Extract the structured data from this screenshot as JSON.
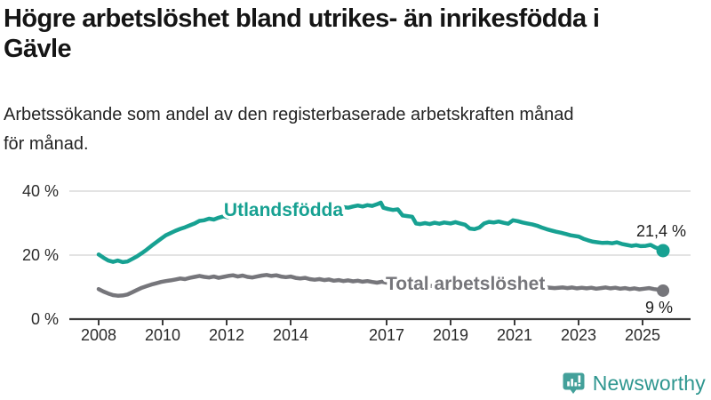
{
  "chart_data": {
    "type": "line",
    "title": "Högre arbetslöshet bland utrikes- än inrikesfödda i\nGävle",
    "subtitle": "Arbetssökande som andel av den registerbaserade arbetskraften månad\nför månad.",
    "unit": "%",
    "grid": "horizontal-only",
    "legend": "inline-series-labels",
    "x_axis": {
      "ticks": [
        {
          "label": "2008",
          "year": 2008
        },
        {
          "label": "2010",
          "year": 2010
        },
        {
          "label": "2012",
          "year": 2012
        },
        {
          "label": "2014",
          "year": 2014
        },
        {
          "label": "2017",
          "year": 2017
        },
        {
          "label": "2019",
          "year": 2019
        },
        {
          "label": "2021",
          "year": 2021
        },
        {
          "label": "2023",
          "year": 2023
        },
        {
          "label": "2025",
          "year": 2025
        }
      ],
      "range_years": [
        2008,
        2025.64
      ]
    },
    "y_axis": {
      "ticks": [
        {
          "label": "0 %",
          "value": 0
        },
        {
          "label": "20 %",
          "value": 20
        },
        {
          "label": "40 %",
          "value": 40
        }
      ],
      "ylim": [
        0,
        42
      ]
    },
    "series": [
      {
        "name": "Utlandsfödda",
        "color": "#17A192",
        "end_label": "21,4 %",
        "end_value": 21.4,
        "points": [
          [
            2008.0,
            20.2
          ],
          [
            2008.15,
            19.2
          ],
          [
            2008.3,
            18.3
          ],
          [
            2008.45,
            17.9
          ],
          [
            2008.6,
            18.3
          ],
          [
            2008.75,
            17.8
          ],
          [
            2008.9,
            18.0
          ],
          [
            2009.05,
            18.8
          ],
          [
            2009.2,
            19.6
          ],
          [
            2009.35,
            20.6
          ],
          [
            2009.5,
            21.7
          ],
          [
            2009.65,
            22.9
          ],
          [
            2009.8,
            24.0
          ],
          [
            2009.95,
            25.1
          ],
          [
            2010.1,
            26.2
          ],
          [
            2010.25,
            26.9
          ],
          [
            2010.4,
            27.6
          ],
          [
            2010.55,
            28.2
          ],
          [
            2010.7,
            28.7
          ],
          [
            2010.85,
            29.3
          ],
          [
            2011.0,
            29.9
          ],
          [
            2011.15,
            30.7
          ],
          [
            2011.3,
            30.9
          ],
          [
            2011.45,
            31.4
          ],
          [
            2011.6,
            31.1
          ],
          [
            2011.75,
            31.7
          ],
          [
            2011.9,
            32.1
          ],
          [
            2012.05,
            31.8
          ],
          [
            2012.2,
            32.4
          ],
          [
            2012.35,
            32.9
          ],
          [
            2012.5,
            32.5
          ],
          [
            2012.65,
            32.8
          ],
          [
            2012.8,
            33.2
          ],
          [
            2012.95,
            32.7
          ],
          [
            2013.1,
            33.2
          ],
          [
            2013.25,
            33.6
          ],
          [
            2013.4,
            33.1
          ],
          [
            2013.55,
            33.4
          ],
          [
            2013.7,
            33.0
          ],
          [
            2013.85,
            33.3
          ],
          [
            2014.0,
            33.6
          ],
          [
            2014.15,
            33.2
          ],
          [
            2014.3,
            33.7
          ],
          [
            2014.45,
            33.4
          ],
          [
            2014.6,
            33.8
          ],
          [
            2014.75,
            34.0
          ],
          [
            2014.9,
            33.7
          ],
          [
            2015.05,
            34.1
          ],
          [
            2015.2,
            34.4
          ],
          [
            2015.35,
            34.2
          ],
          [
            2015.5,
            34.6
          ],
          [
            2015.65,
            35.0
          ],
          [
            2015.8,
            34.8
          ],
          [
            2015.95,
            35.2
          ],
          [
            2016.1,
            35.5
          ],
          [
            2016.25,
            35.2
          ],
          [
            2016.4,
            35.6
          ],
          [
            2016.55,
            35.4
          ],
          [
            2016.7,
            35.9
          ],
          [
            2016.82,
            36.4
          ],
          [
            2016.9,
            34.8
          ],
          [
            2017.05,
            34.4
          ],
          [
            2017.2,
            34.1
          ],
          [
            2017.35,
            34.3
          ],
          [
            2017.5,
            32.4
          ],
          [
            2017.65,
            32.2
          ],
          [
            2017.8,
            32.0
          ],
          [
            2017.92,
            29.9
          ],
          [
            2018.05,
            29.7
          ],
          [
            2018.2,
            30.0
          ],
          [
            2018.35,
            29.7
          ],
          [
            2018.5,
            30.1
          ],
          [
            2018.65,
            29.8
          ],
          [
            2018.8,
            30.2
          ],
          [
            2019.0,
            29.9
          ],
          [
            2019.15,
            30.3
          ],
          [
            2019.3,
            29.9
          ],
          [
            2019.45,
            29.5
          ],
          [
            2019.6,
            28.3
          ],
          [
            2019.75,
            28.1
          ],
          [
            2019.9,
            28.6
          ],
          [
            2020.05,
            29.9
          ],
          [
            2020.2,
            30.4
          ],
          [
            2020.35,
            30.2
          ],
          [
            2020.5,
            30.5
          ],
          [
            2020.65,
            30.1
          ],
          [
            2020.8,
            29.8
          ],
          [
            2020.95,
            30.9
          ],
          [
            2021.1,
            30.6
          ],
          [
            2021.25,
            30.2
          ],
          [
            2021.4,
            29.9
          ],
          [
            2021.55,
            29.6
          ],
          [
            2021.7,
            29.2
          ],
          [
            2021.85,
            28.6
          ],
          [
            2022.0,
            28.1
          ],
          [
            2022.15,
            27.7
          ],
          [
            2022.3,
            27.3
          ],
          [
            2022.45,
            27.0
          ],
          [
            2022.6,
            26.6
          ],
          [
            2022.75,
            26.2
          ],
          [
            2023.0,
            25.8
          ],
          [
            2023.15,
            25.1
          ],
          [
            2023.3,
            24.6
          ],
          [
            2023.45,
            24.2
          ],
          [
            2023.6,
            24.0
          ],
          [
            2023.75,
            23.8
          ],
          [
            2023.9,
            23.9
          ],
          [
            2024.05,
            23.7
          ],
          [
            2024.2,
            24.0
          ],
          [
            2024.35,
            23.5
          ],
          [
            2024.5,
            23.2
          ],
          [
            2024.65,
            22.9
          ],
          [
            2024.8,
            23.1
          ],
          [
            2024.95,
            22.8
          ],
          [
            2025.1,
            22.9
          ],
          [
            2025.25,
            23.2
          ],
          [
            2025.4,
            22.4
          ],
          [
            2025.55,
            21.9
          ],
          [
            2025.64,
            21.4
          ]
        ]
      },
      {
        "name": "Total arbetslöshet",
        "color": "#76767B",
        "end_label": "9 %",
        "end_value": 8.9,
        "points": [
          [
            2008.0,
            9.4
          ],
          [
            2008.15,
            8.6
          ],
          [
            2008.3,
            8.0
          ],
          [
            2008.45,
            7.5
          ],
          [
            2008.6,
            7.3
          ],
          [
            2008.75,
            7.4
          ],
          [
            2008.9,
            7.7
          ],
          [
            2009.05,
            8.4
          ],
          [
            2009.2,
            9.1
          ],
          [
            2009.35,
            9.8
          ],
          [
            2009.5,
            10.3
          ],
          [
            2009.65,
            10.8
          ],
          [
            2009.8,
            11.2
          ],
          [
            2009.95,
            11.6
          ],
          [
            2010.1,
            11.9
          ],
          [
            2010.25,
            12.1
          ],
          [
            2010.4,
            12.4
          ],
          [
            2010.55,
            12.7
          ],
          [
            2010.7,
            12.5
          ],
          [
            2010.85,
            12.9
          ],
          [
            2011.0,
            13.2
          ],
          [
            2011.15,
            13.5
          ],
          [
            2011.3,
            13.2
          ],
          [
            2011.45,
            13.0
          ],
          [
            2011.6,
            13.3
          ],
          [
            2011.75,
            12.9
          ],
          [
            2011.9,
            13.2
          ],
          [
            2012.05,
            13.5
          ],
          [
            2012.2,
            13.7
          ],
          [
            2012.35,
            13.3
          ],
          [
            2012.5,
            13.6
          ],
          [
            2012.65,
            13.2
          ],
          [
            2012.8,
            13.0
          ],
          [
            2012.95,
            13.3
          ],
          [
            2013.1,
            13.6
          ],
          [
            2013.25,
            13.8
          ],
          [
            2013.4,
            13.5
          ],
          [
            2013.55,
            13.7
          ],
          [
            2013.7,
            13.3
          ],
          [
            2013.85,
            13.1
          ],
          [
            2014.0,
            13.3
          ],
          [
            2014.15,
            12.9
          ],
          [
            2014.3,
            12.7
          ],
          [
            2014.45,
            12.9
          ],
          [
            2014.6,
            12.5
          ],
          [
            2014.75,
            12.3
          ],
          [
            2014.9,
            12.5
          ],
          [
            2015.05,
            12.2
          ],
          [
            2015.2,
            12.4
          ],
          [
            2015.35,
            12.0
          ],
          [
            2015.5,
            12.2
          ],
          [
            2015.65,
            11.9
          ],
          [
            2015.8,
            12.1
          ],
          [
            2015.95,
            11.8
          ],
          [
            2016.1,
            12.0
          ],
          [
            2016.25,
            11.7
          ],
          [
            2016.4,
            11.9
          ],
          [
            2016.55,
            11.6
          ],
          [
            2016.7,
            11.4
          ],
          [
            2016.85,
            11.7
          ],
          [
            2017.0,
            11.4
          ],
          [
            2017.25,
            11.2
          ],
          [
            2017.5,
            11.0
          ],
          [
            2017.75,
            10.8
          ],
          [
            2018.0,
            10.6
          ],
          [
            2018.25,
            10.4
          ],
          [
            2018.5,
            10.3
          ],
          [
            2018.75,
            10.4
          ],
          [
            2019.0,
            10.2
          ],
          [
            2019.25,
            10.0
          ],
          [
            2019.5,
            9.8
          ],
          [
            2019.75,
            10.0
          ],
          [
            2020.0,
            10.6
          ],
          [
            2020.25,
            11.3
          ],
          [
            2020.5,
            11.5
          ],
          [
            2020.75,
            11.2
          ],
          [
            2021.0,
            10.9
          ],
          [
            2021.25,
            10.6
          ],
          [
            2021.5,
            10.3
          ],
          [
            2021.75,
            10.1
          ],
          [
            2022.0,
            9.9
          ],
          [
            2022.25,
            9.7
          ],
          [
            2022.5,
            9.9
          ],
          [
            2022.65,
            9.7
          ],
          [
            2022.8,
            9.9
          ],
          [
            2022.95,
            9.6
          ],
          [
            2023.1,
            9.8
          ],
          [
            2023.25,
            9.6
          ],
          [
            2023.4,
            9.8
          ],
          [
            2023.55,
            9.5
          ],
          [
            2023.7,
            9.7
          ],
          [
            2023.85,
            9.9
          ],
          [
            2024.0,
            9.6
          ],
          [
            2024.15,
            9.8
          ],
          [
            2024.3,
            9.5
          ],
          [
            2024.45,
            9.7
          ],
          [
            2024.6,
            9.4
          ],
          [
            2024.75,
            9.6
          ],
          [
            2024.9,
            9.3
          ],
          [
            2025.05,
            9.5
          ],
          [
            2025.2,
            9.7
          ],
          [
            2025.35,
            9.4
          ],
          [
            2025.5,
            9.2
          ],
          [
            2025.64,
            8.9
          ]
        ]
      }
    ],
    "axis_colors": {
      "axis_line": "#3C3C3C",
      "gridline": "#DADADA",
      "tick_label": "#2B2B2B",
      "value_label": "#1D1D1D"
    }
  },
  "footer": {
    "brand": "Newsworthy",
    "brand_color": "#2E968F",
    "icon_color": "#43A09A",
    "icon": "newsworthy-barchart-bubble-icon"
  }
}
